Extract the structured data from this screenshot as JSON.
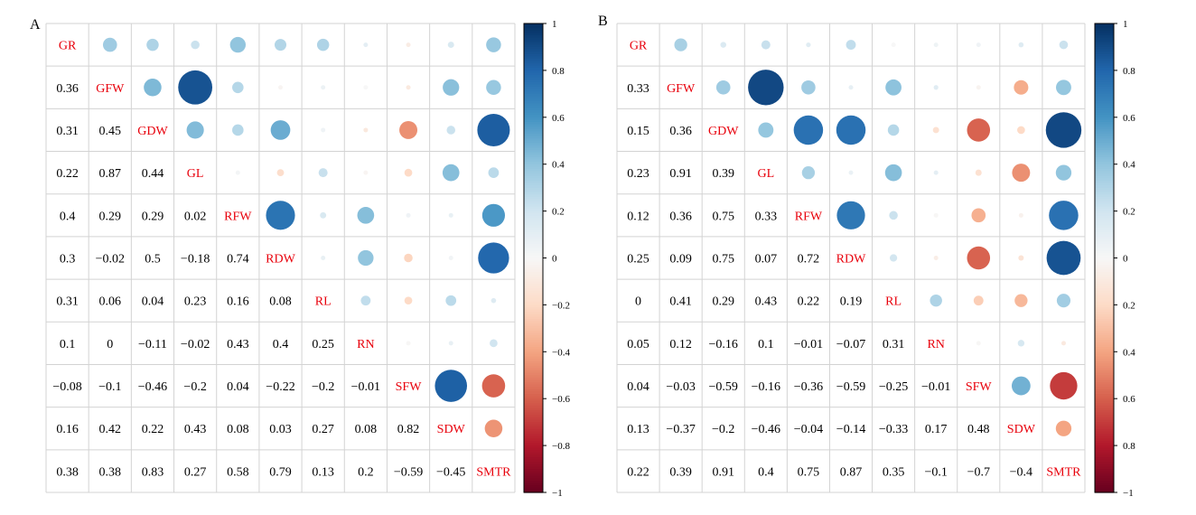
{
  "chart_data": [
    {
      "type": "heatmap",
      "panel_label": "A",
      "variables": [
        "GR",
        "GFW",
        "GDW",
        "GL",
        "RFW",
        "RDW",
        "RL",
        "RN",
        "SFW",
        "SDW",
        "SMTR"
      ],
      "lower": [
        [
          "0.36"
        ],
        [
          "0.31",
          "0.45"
        ],
        [
          "0.22",
          "0.87",
          "0.44"
        ],
        [
          "0.4",
          "0.29",
          "0.29",
          "0.02"
        ],
        [
          "0.3",
          "−0.02",
          "0.5",
          "−0.18",
          "0.74"
        ],
        [
          "0.31",
          "0.06",
          "0.04",
          "0.23",
          "0.16",
          "0.08"
        ],
        [
          "0.1",
          "0",
          "−0.11",
          "−0.02",
          "0.43",
          "0.4",
          "0.25"
        ],
        [
          "−0.08",
          "−0.1",
          "−0.46",
          "−0.2",
          "0.04",
          "−0.22",
          "−0.2",
          "−0.01"
        ],
        [
          "0.16",
          "0.42",
          "0.22",
          "0.43",
          "0.08",
          "0.03",
          "0.27",
          "0.08",
          "0.82"
        ],
        [
          "0.38",
          "0.38",
          "0.83",
          "0.27",
          "0.58",
          "0.79",
          "0.13",
          "0.2",
          "−0.59",
          "−0.45"
        ]
      ],
      "colorbar": {
        "range": [
          -1,
          1
        ],
        "ticks": [
          "1",
          "0.8",
          "0.6",
          "0.4",
          "0.2",
          "0",
          "−0.2",
          "−0.4",
          "−0.6",
          "−0.8",
          "−1"
        ]
      }
    },
    {
      "type": "heatmap",
      "panel_label": "B",
      "variables": [
        "GR",
        "GFW",
        "GDW",
        "GL",
        "RFW",
        "RDW",
        "RL",
        "RN",
        "SFW",
        "SDW",
        "SMTR"
      ],
      "lower": [
        [
          "0.33"
        ],
        [
          "0.15",
          "0.36"
        ],
        [
          "0.23",
          "0.91",
          "0.39"
        ],
        [
          "0.12",
          "0.36",
          "0.75",
          "0.33"
        ],
        [
          "0.25",
          "0.09",
          "0.75",
          "0.07",
          "0.72"
        ],
        [
          "0",
          "0.41",
          "0.29",
          "0.43",
          "0.22",
          "0.19"
        ],
        [
          "0.05",
          "0.12",
          "−0.16",
          "0.1",
          "−0.01",
          "−0.07",
          "0.31"
        ],
        [
          "0.04",
          "−0.03",
          "−0.59",
          "−0.16",
          "−0.36",
          "−0.59",
          "−0.25",
          "−0.01"
        ],
        [
          "0.13",
          "−0.37",
          "−0.2",
          "−0.46",
          "−0.04",
          "−0.14",
          "−0.33",
          "0.17",
          "0.48"
        ],
        [
          "0.22",
          "0.39",
          "0.91",
          "0.4",
          "0.75",
          "0.87",
          "0.35",
          "−0.1",
          "−0.7",
          "−0.4"
        ]
      ],
      "colorbar": {
        "range": [
          -1,
          1
        ],
        "ticks": [
          "1",
          "0.8",
          "0.6",
          "0.4",
          "0.2",
          "0",
          "0.2",
          "0.4",
          "0.6",
          "0.8",
          "−1"
        ]
      }
    }
  ]
}
